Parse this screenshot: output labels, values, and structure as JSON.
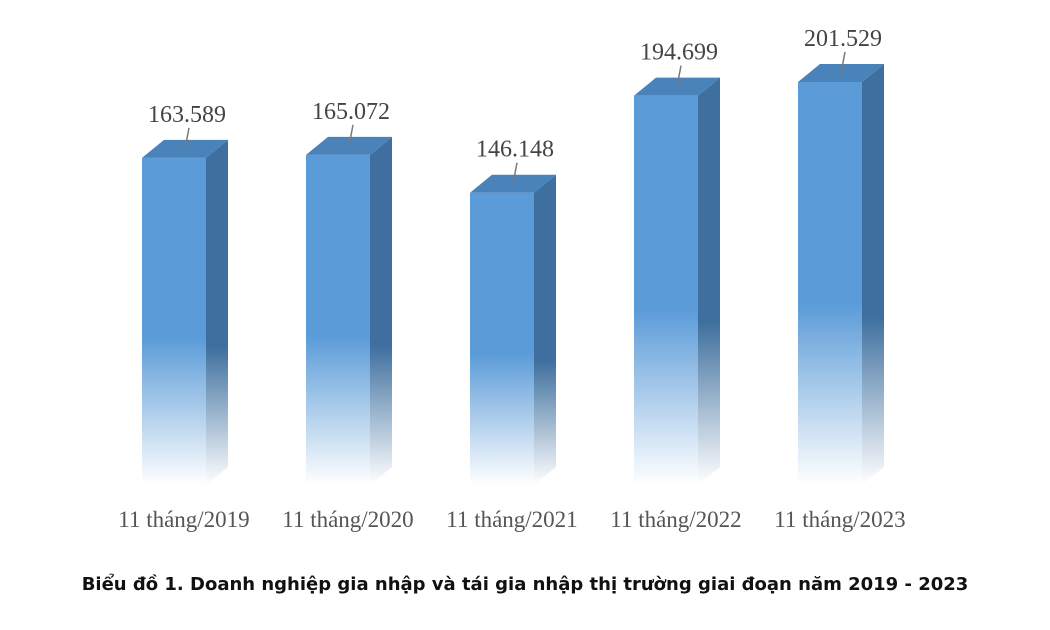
{
  "chart_data": {
    "type": "bar",
    "style": "3d-column",
    "categories": [
      "11 tháng/2019",
      "11 tháng/2020",
      "11 tháng/2021",
      "11 tháng/2022",
      "11 tháng/2023"
    ],
    "values": [
      163589,
      165072,
      146148,
      194699,
      201529
    ],
    "data_labels": [
      "163.589",
      "165.072",
      "146.148",
      "194.699",
      "201.529"
    ],
    "title": "",
    "xlabel": "",
    "ylabel": "",
    "ylim": [
      0,
      210000
    ],
    "grid": false,
    "legend": "none",
    "colors": {
      "front_top": "#5b9bd8",
      "front_bottom": "#ffffff",
      "side": "#3e6f9e",
      "top": "#4a82ba",
      "leader_line": "#7a7a7a"
    }
  },
  "caption": "Biểu đồ 1. Doanh nghiệp gia nhập và tái gia nhập thị trường giai đoạn năm 2019 - 2023"
}
